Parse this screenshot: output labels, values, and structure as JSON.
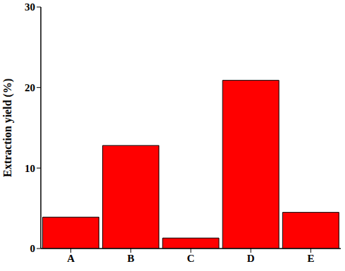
{
  "chart_data": {
    "type": "bar",
    "y_label": "Extraction yield (%)",
    "categories": [
      "A",
      "B",
      "C",
      "D",
      "E"
    ],
    "values": [
      3.9,
      12.8,
      1.3,
      20.9,
      4.5
    ],
    "color": "#ff0000",
    "ylim": [
      0,
      30
    ],
    "yticks": [
      0,
      10,
      20,
      30
    ],
    "grid": false
  }
}
